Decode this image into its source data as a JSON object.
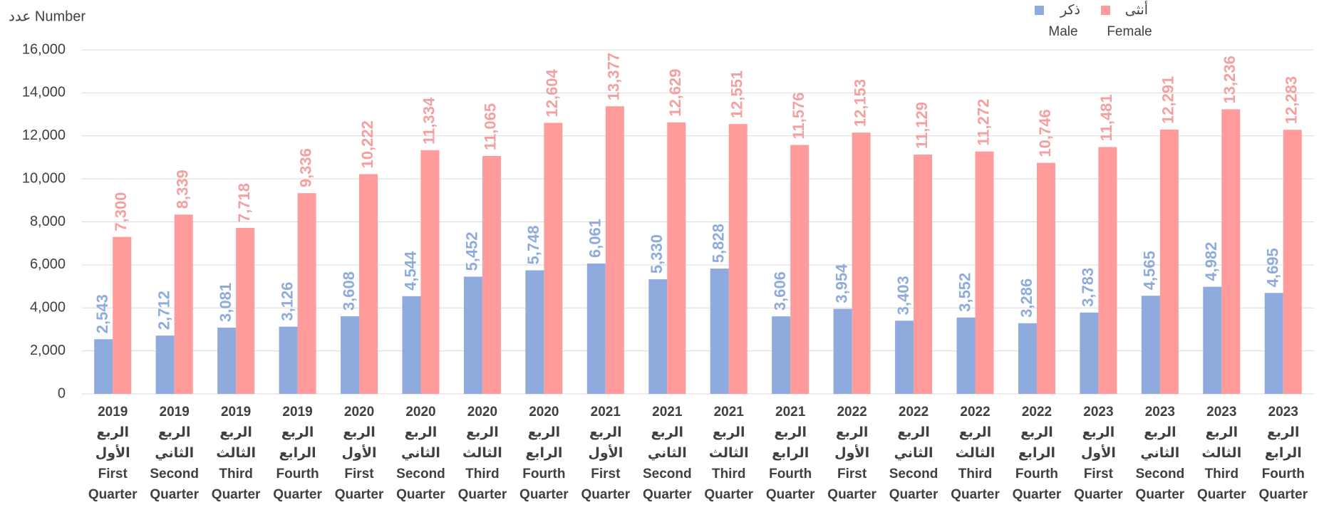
{
  "chart_data": {
    "type": "bar",
    "y_label": "عدد Number",
    "categories": [
      [
        "2019",
        "الربع",
        "الأول",
        "First",
        "Quarter"
      ],
      [
        "2019",
        "الربع",
        "الثاني",
        "Second",
        "Quarter"
      ],
      [
        "2019",
        "الربع",
        "الثالث",
        "Third",
        "Quarter"
      ],
      [
        "2019",
        "الربع",
        "الرابع",
        "Fourth",
        "Quarter"
      ],
      [
        "2020",
        "الربع",
        "الأول",
        "First",
        "Quarter"
      ],
      [
        "2020",
        "الربع",
        "الثاني",
        "Second",
        "Quarter"
      ],
      [
        "2020",
        "الربع",
        "الثالث",
        "Third",
        "Quarter"
      ],
      [
        "2020",
        "الربع",
        "الرابع",
        "Fourth",
        "Quarter"
      ],
      [
        "2021",
        "الربع",
        "الأول",
        "First",
        "Quarter"
      ],
      [
        "2021",
        "الربع",
        "الثاني",
        "Second",
        "Quarter"
      ],
      [
        "2021",
        "الربع",
        "الثالث",
        "Third",
        "Quarter"
      ],
      [
        "2021",
        "الربع",
        "الرابع",
        "Fourth",
        "Quarter"
      ],
      [
        "2022",
        "الربع",
        "الأول",
        "First",
        "Quarter"
      ],
      [
        "2022",
        "الربع",
        "الثاني",
        "Second",
        "Quarter"
      ],
      [
        "2022",
        "الربع",
        "الثالث",
        "Third",
        "Quarter"
      ],
      [
        "2022",
        "الربع",
        "الرابع",
        "Fourth",
        "Quarter"
      ],
      [
        "2023",
        "الربع",
        "الأول",
        "First",
        "Quarter"
      ],
      [
        "2023",
        "الربع",
        "الثاني",
        "Second",
        "Quarter"
      ],
      [
        "2023",
        "الربع",
        "الثالث",
        "Third",
        "Quarter"
      ],
      [
        "2023",
        "الربع",
        "الرابع",
        "Fourth",
        "Quarter"
      ]
    ],
    "series": [
      {
        "name": "ذكر",
        "name_en": "Male",
        "color": "#8faadc",
        "label_color": "#8faadc",
        "values": [
          2543,
          2712,
          3081,
          3126,
          3608,
          4544,
          5452,
          5748,
          6061,
          5330,
          5828,
          3606,
          3954,
          3403,
          3552,
          3286,
          3783,
          4565,
          4982,
          4695
        ],
        "value_labels": [
          "2,543",
          "2,712",
          "3,081",
          "3,126",
          "3,608",
          "4,544",
          "5,452",
          "5,748",
          "6,061",
          "5,330",
          "5,828",
          "3,606",
          "3,954",
          "3,403",
          "3,552",
          "3,286",
          "3,783",
          "4,565",
          "4,982",
          "4,695"
        ]
      },
      {
        "name": "أنثى",
        "name_en": "Female",
        "color": "#ff9b9b",
        "label_color": "#f4a0a0",
        "values": [
          7300,
          8339,
          7718,
          9336,
          10222,
          11334,
          11065,
          12604,
          13377,
          12629,
          12551,
          11576,
          12153,
          11129,
          11272,
          10746,
          11481,
          12291,
          13236,
          12283
        ],
        "value_labels": [
          "7,300",
          "8,339",
          "7,718",
          "9,336",
          "10,222",
          "11,334",
          "11,065",
          "12,604",
          "13,377",
          "12,629",
          "12,551",
          "11,576",
          "12,153",
          "11,129",
          "11,272",
          "10,746",
          "11,481",
          "12,291",
          "13,236",
          "12,283"
        ]
      }
    ],
    "ylim": [
      0,
      16000
    ],
    "yticks": [
      0,
      {
        "value": 2000,
        "label": "2,000"
      },
      {
        "value": 4000,
        "label": "4,000"
      },
      {
        "value": 6000,
        "label": "6,000"
      },
      {
        "value": 8000,
        "label": "8,000"
      },
      {
        "value": 10000,
        "label": "10,000"
      },
      {
        "value": 12000,
        "label": "12,000"
      },
      {
        "value": 14000,
        "label": "14,000"
      },
      {
        "value": 16000,
        "label": "16,000"
      }
    ],
    "grid": true,
    "legend": "top-right"
  }
}
